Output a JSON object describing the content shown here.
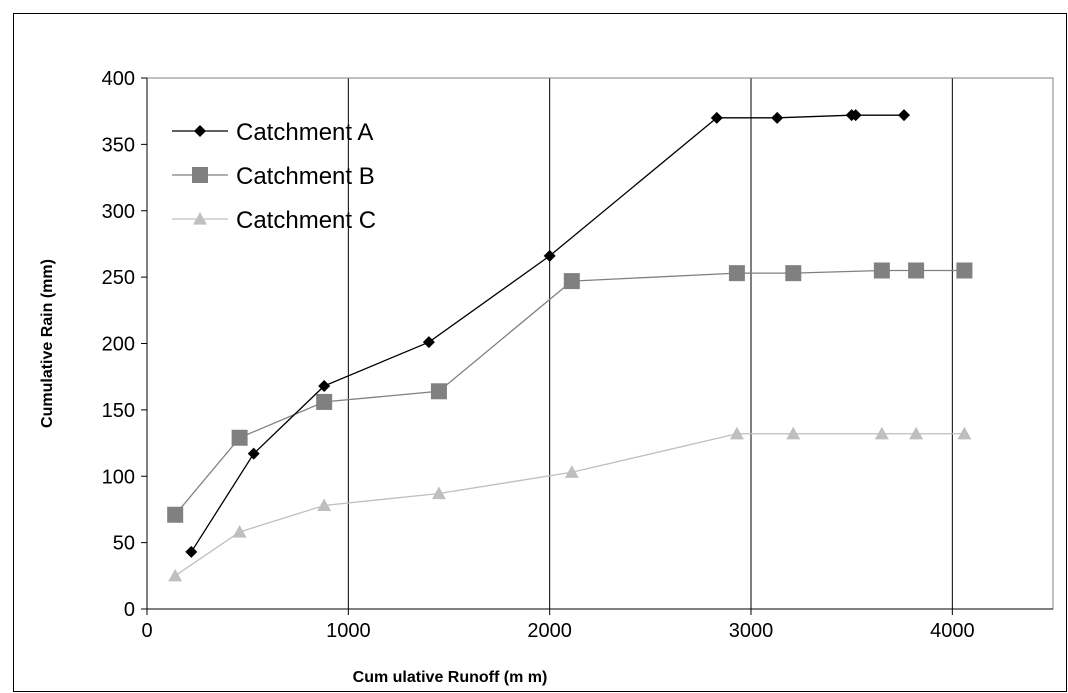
{
  "chart_data": {
    "type": "line",
    "xlabel": "Cum ulative Runoff (m m)",
    "ylabel": "Cumulative Rain (mm)",
    "xlim": [
      0,
      4500
    ],
    "ylim": [
      0,
      400
    ],
    "x_ticks": [
      0,
      1000,
      2000,
      3000,
      4000
    ],
    "y_ticks": [
      0,
      50,
      100,
      150,
      200,
      250,
      300,
      350,
      400
    ],
    "x_gridlines": [
      1000,
      2000,
      3000,
      4000
    ],
    "grid": "vertical",
    "legend_position": "top-left",
    "series": [
      {
        "name": "Catchment A",
        "color": "#000000",
        "marker": "diamond",
        "x": [
          220,
          530,
          880,
          1400,
          2000,
          2830,
          3130,
          3500,
          3520,
          3760
        ],
        "y": [
          43,
          117,
          168,
          201,
          266,
          370,
          370,
          372,
          372,
          372
        ]
      },
      {
        "name": "Catchment B",
        "color": "#808080",
        "marker": "square",
        "x": [
          140,
          460,
          880,
          1450,
          2110,
          2930,
          3210,
          3650,
          3820,
          4060
        ],
        "y": [
          71,
          129,
          156,
          164,
          247,
          253,
          253,
          255,
          255,
          255
        ]
      },
      {
        "name": "Catchment C",
        "color": "#bfbfbf",
        "marker": "triangle",
        "x": [
          140,
          460,
          880,
          1450,
          2110,
          2930,
          3210,
          3650,
          3820,
          4060
        ],
        "y": [
          25,
          58,
          78,
          87,
          103,
          132,
          132,
          132,
          132,
          132
        ]
      }
    ]
  }
}
